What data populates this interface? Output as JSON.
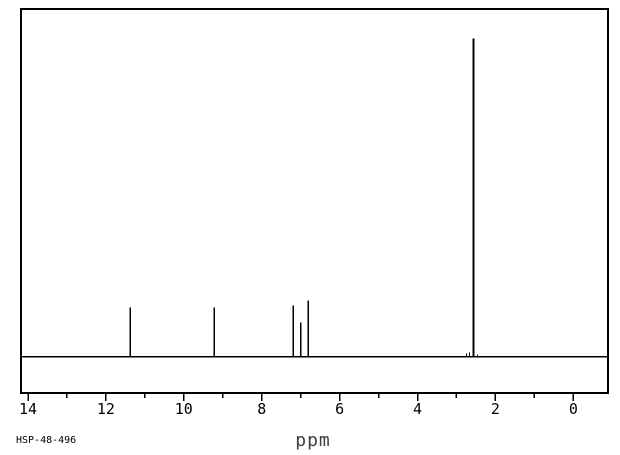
{
  "chart_data": {
    "type": "line",
    "subtype": "1H-NMR-spectrum",
    "xlabel": "ppm",
    "ylabel": "",
    "annotation": "HSP-48-496",
    "grid": false,
    "legend": "none",
    "background": "#ffffff",
    "line_color": "#000000",
    "text_color": "#000000",
    "x_axis": {
      "label": "ppm",
      "direction": "reversed",
      "left_edge_ppm": 14.18,
      "right_edge_ppm": -0.89,
      "major_ticks": [
        14,
        12,
        10,
        8,
        6,
        4,
        2,
        0
      ],
      "minor_ticks": [
        13,
        11,
        9,
        7,
        5,
        3,
        1
      ]
    },
    "peaks": [
      {
        "ppm": 11.38,
        "intensity": 0.154
      },
      {
        "ppm": 9.22,
        "intensity": 0.154
      },
      {
        "ppm": 7.19,
        "intensity": 0.16
      },
      {
        "ppm": 7.0,
        "intensity": 0.107
      },
      {
        "ppm": 6.81,
        "intensity": 0.176
      },
      {
        "ppm": 2.74,
        "intensity": 0.009
      },
      {
        "ppm": 2.67,
        "intensity": 0.013
      },
      {
        "ppm": 2.56,
        "intensity": 1.0
      },
      {
        "ppm": 2.46,
        "intensity": 0.006
      }
    ]
  }
}
